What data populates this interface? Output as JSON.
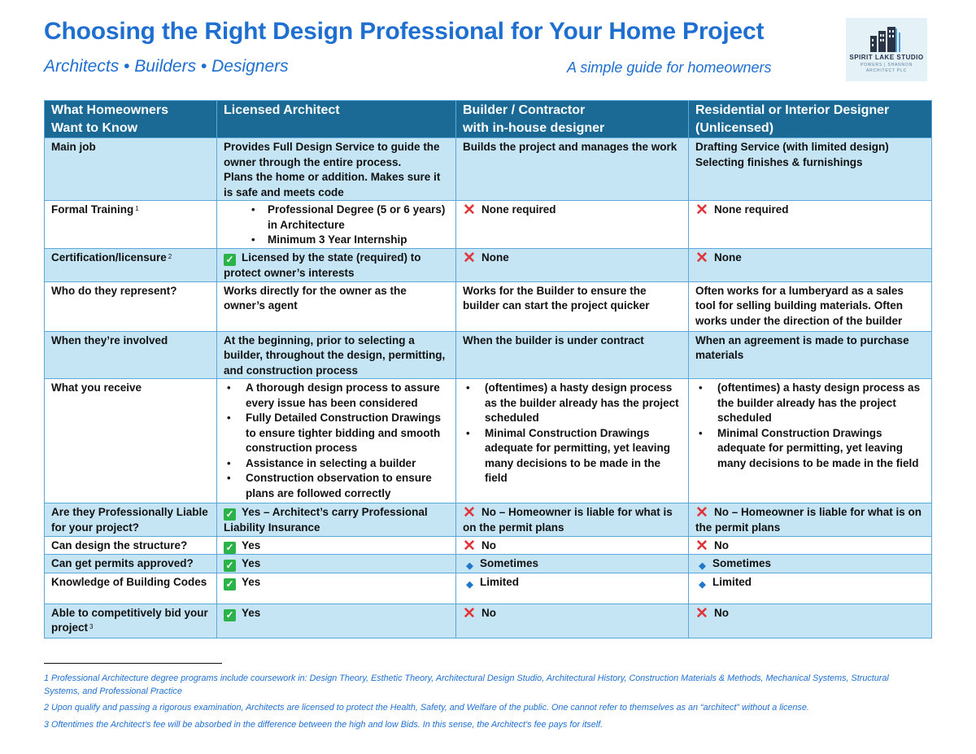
{
  "header": {
    "title": "Choosing the Right Design Professional for Your Home Project",
    "subtitle": "Architects • Builders • Designers",
    "tagline": "A simple guide for homeowners"
  },
  "logo": {
    "name": "SPIRIT LAKE STUDIO",
    "line1": "POWERS | SHANNON",
    "line2": "ARCHITECT PLC"
  },
  "table": {
    "headers": [
      [
        "What Homeowners",
        "Want to Know"
      ],
      [
        "Licensed Architect"
      ],
      [
        "Builder / Contractor",
        "with in-house designer"
      ],
      [
        "Residential or Interior Designer",
        "(Unlicensed)"
      ]
    ],
    "rows": {
      "main_job": {
        "label": "Main job",
        "architect": [
          "Provides Full Design Service to guide the owner through the entire process.",
          "Plans the home or addition. Makes sure it is safe and meets code"
        ],
        "builder": "Builds the project and manages the work",
        "designer": [
          "Drafting Service (with limited design)",
          "Selecting finishes & furnishings"
        ]
      },
      "training": {
        "label": "Formal Training",
        "sup": "1",
        "architect": [
          "Professional Degree (5 or 6 years) in Architecture",
          "Minimum 3 Year Internship"
        ],
        "builder": "None required",
        "designer": "None required"
      },
      "certification": {
        "label": "Certification/licensure",
        "sup": "2",
        "architect": "Licensed by the state (required) to protect owner’s interests",
        "builder": "None",
        "designer": "None"
      },
      "represent": {
        "label": "Who do they represent?",
        "architect": "Works directly for the owner as the owner’s agent",
        "builder": "Works for the Builder to ensure the builder can start the project quicker",
        "designer": "Often works for a lumberyard as a sales tool for selling building materials.  Often works under the direction of the builder"
      },
      "involved": {
        "label": "When they’re involved",
        "architect": "At the beginning, prior to selecting a builder, throughout the design, permitting, and construction process",
        "builder": "When the builder is under contract",
        "designer": "When an agreement is made to purchase materials"
      },
      "receive": {
        "label": "What you receive",
        "architect": [
          "A thorough design process to assure every issue has been considered",
          "Fully Detailed Construction Drawings to ensure tighter bidding and smooth construction process",
          "Assistance in selecting a builder",
          "Construction observation to ensure plans are followed correctly"
        ],
        "builder": [
          "(oftentimes) a hasty design process as the builder already has the project scheduled",
          "Minimal Construction Drawings adequate for permitting, yet leaving many decisions to be made in the field"
        ],
        "designer": [
          "(oftentimes) a hasty design process as the builder already has the project scheduled",
          "Minimal Construction Drawings adequate for permitting, yet leaving many decisions to be made in the field"
        ]
      },
      "liable": {
        "label": "Are they Professionally Liable for your project?",
        "architect": "Yes – Architect’s carry Professional Liability Insurance",
        "builder": "No – Homeowner is liable for what is on the permit plans",
        "designer": "No – Homeowner is liable for what is on the permit plans"
      },
      "structure": {
        "label": "Can design the structure?",
        "architect": "Yes",
        "builder": "No",
        "designer": "No"
      },
      "permits": {
        "label": "Can get permits approved?",
        "architect": "Yes",
        "builder": "Sometimes",
        "designer": "Sometimes"
      },
      "codes": {
        "label": "Knowledge of Building Codes",
        "architect": "Yes",
        "builder": "Limited",
        "designer": "Limited"
      },
      "bid": {
        "label": "Able to competitively bid your project",
        "sup": "3",
        "architect": "Yes",
        "builder": "No",
        "designer": "No"
      }
    }
  },
  "icons": {
    "check": "✓",
    "cross": "✕",
    "diamond": "◆"
  },
  "footnotes": [
    "1 Professional Architecture degree programs include coursework in: Design Theory, Esthetic Theory, Architectural Design Studio, Architectural History, Construction Materials & Methods, Mechanical Systems, Structural Systems, and Professional Practice",
    "2 Upon qualify and passing a rigorous examination, Architects are licensed to protect the Health, Safety, and Welfare of the public.  One cannot refer to themselves as an “architect” without a license.",
    "3 Oftentimes the Architect’s fee will be absorbed in the difference between the high and low Bids. In this sense, the Architect’s fee pays for itself."
  ],
  "colors": {
    "accent": "#1f6fd1",
    "header_fill": "#1b6a96",
    "row_shade": "#c5e5f5",
    "border": "#5aa8dc",
    "check": "#2bb34a",
    "cross": "#e0363b",
    "diamond": "#1f77c8"
  }
}
